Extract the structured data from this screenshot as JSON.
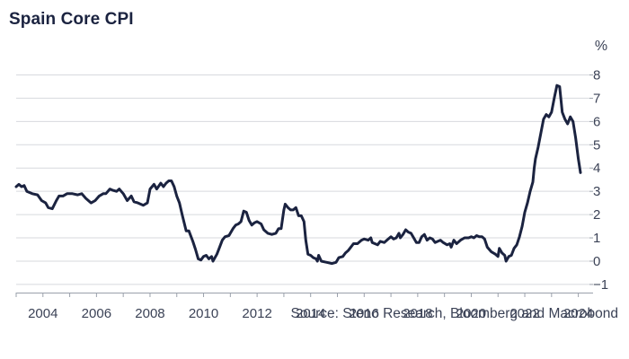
{
  "chart_data": {
    "type": "line",
    "title": "Spain Core CPI",
    "source": "Source: Steno Research, Bloomberg and Macrobond",
    "ylabel": "%",
    "xlabel": "",
    "xlim": [
      2003.0,
      2024.55
    ],
    "ylim": [
      -1.35,
      8.25
    ],
    "y_ticks": [
      -1,
      0,
      1,
      2,
      3,
      4,
      5,
      6,
      7,
      8
    ],
    "x_ticks": [
      2004,
      2006,
      2008,
      2010,
      2012,
      2014,
      2016,
      2018,
      2020,
      2022,
      2024
    ],
    "grid": "horizontal",
    "y_axis_side": "right",
    "line_color": "#1b2340",
    "grid_color": "#d7d9de",
    "series": [
      {
        "points": [
          [
            2003.0,
            3.2
          ],
          [
            2003.1,
            3.3
          ],
          [
            2003.2,
            3.2
          ],
          [
            2003.3,
            3.25
          ],
          [
            2003.4,
            3.0
          ],
          [
            2003.6,
            2.9
          ],
          [
            2003.8,
            2.85
          ],
          [
            2003.95,
            2.6
          ],
          [
            2004.1,
            2.5
          ],
          [
            2004.2,
            2.3
          ],
          [
            2004.35,
            2.25
          ],
          [
            2004.5,
            2.6
          ],
          [
            2004.6,
            2.8
          ],
          [
            2004.75,
            2.8
          ],
          [
            2004.9,
            2.9
          ],
          [
            2005.1,
            2.9
          ],
          [
            2005.3,
            2.85
          ],
          [
            2005.45,
            2.9
          ],
          [
            2005.6,
            2.7
          ],
          [
            2005.8,
            2.5
          ],
          [
            2005.95,
            2.6
          ],
          [
            2006.1,
            2.8
          ],
          [
            2006.25,
            2.9
          ],
          [
            2006.35,
            2.9
          ],
          [
            2006.5,
            3.1
          ],
          [
            2006.6,
            3.05
          ],
          [
            2006.75,
            3.0
          ],
          [
            2006.85,
            3.1
          ],
          [
            2007.0,
            2.9
          ],
          [
            2007.15,
            2.6
          ],
          [
            2007.3,
            2.8
          ],
          [
            2007.4,
            2.55
          ],
          [
            2007.55,
            2.5
          ],
          [
            2007.75,
            2.4
          ],
          [
            2007.9,
            2.5
          ],
          [
            2008.0,
            3.1
          ],
          [
            2008.15,
            3.3
          ],
          [
            2008.25,
            3.1
          ],
          [
            2008.4,
            3.35
          ],
          [
            2008.5,
            3.2
          ],
          [
            2008.6,
            3.35
          ],
          [
            2008.7,
            3.45
          ],
          [
            2008.8,
            3.45
          ],
          [
            2008.9,
            3.2
          ],
          [
            2009.0,
            2.8
          ],
          [
            2009.1,
            2.5
          ],
          [
            2009.2,
            2.0
          ],
          [
            2009.35,
            1.3
          ],
          [
            2009.45,
            1.3
          ],
          [
            2009.6,
            0.85
          ],
          [
            2009.7,
            0.5
          ],
          [
            2009.8,
            0.1
          ],
          [
            2009.9,
            0.05
          ],
          [
            2010.0,
            0.2
          ],
          [
            2010.1,
            0.25
          ],
          [
            2010.2,
            0.1
          ],
          [
            2010.3,
            0.2
          ],
          [
            2010.35,
            0.0
          ],
          [
            2010.5,
            0.3
          ],
          [
            2010.6,
            0.6
          ],
          [
            2010.7,
            0.9
          ],
          [
            2010.8,
            1.05
          ],
          [
            2010.95,
            1.1
          ],
          [
            2011.1,
            1.4
          ],
          [
            2011.2,
            1.55
          ],
          [
            2011.3,
            1.6
          ],
          [
            2011.4,
            1.7
          ],
          [
            2011.5,
            2.15
          ],
          [
            2011.6,
            2.1
          ],
          [
            2011.7,
            1.75
          ],
          [
            2011.8,
            1.55
          ],
          [
            2011.9,
            1.65
          ],
          [
            2012.0,
            1.7
          ],
          [
            2012.15,
            1.6
          ],
          [
            2012.25,
            1.35
          ],
          [
            2012.4,
            1.2
          ],
          [
            2012.55,
            1.15
          ],
          [
            2012.7,
            1.2
          ],
          [
            2012.8,
            1.4
          ],
          [
            2012.9,
            1.4
          ],
          [
            2013.0,
            2.2
          ],
          [
            2013.05,
            2.45
          ],
          [
            2013.15,
            2.3
          ],
          [
            2013.25,
            2.2
          ],
          [
            2013.35,
            2.2
          ],
          [
            2013.45,
            2.3
          ],
          [
            2013.55,
            1.95
          ],
          [
            2013.65,
            1.95
          ],
          [
            2013.75,
            1.7
          ],
          [
            2013.82,
            0.9
          ],
          [
            2013.9,
            0.3
          ],
          [
            2014.0,
            0.25
          ],
          [
            2014.1,
            0.15
          ],
          [
            2014.2,
            0.1
          ],
          [
            2014.25,
            0.0
          ],
          [
            2014.3,
            0.25
          ],
          [
            2014.4,
            0.0
          ],
          [
            2014.6,
            -0.05
          ],
          [
            2014.8,
            -0.1
          ],
          [
            2014.95,
            -0.05
          ],
          [
            2015.05,
            0.15
          ],
          [
            2015.2,
            0.2
          ],
          [
            2015.3,
            0.35
          ],
          [
            2015.4,
            0.45
          ],
          [
            2015.5,
            0.6
          ],
          [
            2015.6,
            0.75
          ],
          [
            2015.75,
            0.75
          ],
          [
            2015.9,
            0.9
          ],
          [
            2016.0,
            0.95
          ],
          [
            2016.15,
            0.9
          ],
          [
            2016.25,
            1.0
          ],
          [
            2016.3,
            0.8
          ],
          [
            2016.4,
            0.75
          ],
          [
            2016.5,
            0.7
          ],
          [
            2016.6,
            0.85
          ],
          [
            2016.75,
            0.8
          ],
          [
            2016.9,
            0.95
          ],
          [
            2017.0,
            1.05
          ],
          [
            2017.1,
            0.95
          ],
          [
            2017.2,
            1.0
          ],
          [
            2017.3,
            1.2
          ],
          [
            2017.35,
            1.0
          ],
          [
            2017.45,
            1.15
          ],
          [
            2017.55,
            1.35
          ],
          [
            2017.65,
            1.25
          ],
          [
            2017.75,
            1.2
          ],
          [
            2017.85,
            1.0
          ],
          [
            2017.95,
            0.8
          ],
          [
            2018.05,
            0.8
          ],
          [
            2018.15,
            1.05
          ],
          [
            2018.25,
            1.15
          ],
          [
            2018.35,
            0.9
          ],
          [
            2018.45,
            1.0
          ],
          [
            2018.55,
            0.95
          ],
          [
            2018.65,
            0.8
          ],
          [
            2018.75,
            0.85
          ],
          [
            2018.85,
            0.9
          ],
          [
            2018.95,
            0.8
          ],
          [
            2019.1,
            0.7
          ],
          [
            2019.2,
            0.75
          ],
          [
            2019.25,
            0.6
          ],
          [
            2019.35,
            0.9
          ],
          [
            2019.45,
            0.75
          ],
          [
            2019.6,
            0.9
          ],
          [
            2019.75,
            1.0
          ],
          [
            2019.9,
            1.0
          ],
          [
            2020.0,
            1.05
          ],
          [
            2020.1,
            1.0
          ],
          [
            2020.2,
            1.1
          ],
          [
            2020.3,
            1.05
          ],
          [
            2020.4,
            1.05
          ],
          [
            2020.5,
            0.95
          ],
          [
            2020.6,
            0.6
          ],
          [
            2020.75,
            0.4
          ],
          [
            2020.9,
            0.3
          ],
          [
            2021.0,
            0.2
          ],
          [
            2021.05,
            0.55
          ],
          [
            2021.15,
            0.35
          ],
          [
            2021.25,
            0.25
          ],
          [
            2021.3,
            0.0
          ],
          [
            2021.4,
            0.2
          ],
          [
            2021.5,
            0.25
          ],
          [
            2021.6,
            0.55
          ],
          [
            2021.7,
            0.7
          ],
          [
            2021.8,
            1.05
          ],
          [
            2021.9,
            1.5
          ],
          [
            2022.0,
            2.1
          ],
          [
            2022.1,
            2.5
          ],
          [
            2022.2,
            3.0
          ],
          [
            2022.3,
            3.4
          ],
          [
            2022.35,
            4.0
          ],
          [
            2022.4,
            4.4
          ],
          [
            2022.5,
            4.9
          ],
          [
            2022.6,
            5.5
          ],
          [
            2022.7,
            6.1
          ],
          [
            2022.8,
            6.3
          ],
          [
            2022.9,
            6.2
          ],
          [
            2023.0,
            6.4
          ],
          [
            2023.1,
            7.0
          ],
          [
            2023.2,
            7.55
          ],
          [
            2023.3,
            7.5
          ],
          [
            2023.4,
            6.4
          ],
          [
            2023.5,
            6.1
          ],
          [
            2023.6,
            5.9
          ],
          [
            2023.7,
            6.2
          ],
          [
            2023.8,
            6.0
          ],
          [
            2023.9,
            5.3
          ],
          [
            2024.0,
            4.4
          ],
          [
            2024.08,
            3.8
          ]
        ]
      }
    ]
  }
}
